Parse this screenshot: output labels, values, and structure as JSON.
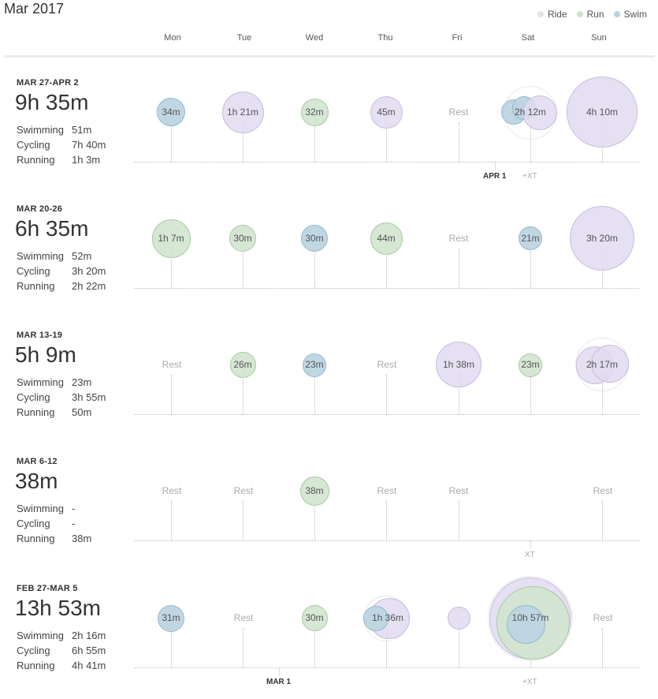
{
  "header": {
    "title": "Mar 2017"
  },
  "legend": {
    "items": [
      {
        "label": "Ride",
        "color": "#e3e3e3"
      },
      {
        "label": "Run",
        "color": "#cfe2cc"
      },
      {
        "label": "Swim",
        "color": "#b9d3e3"
      }
    ]
  },
  "days": [
    "Mon",
    "Tue",
    "Wed",
    "Thu",
    "Fri",
    "Sat",
    "Sun"
  ],
  "weeks": [
    {
      "range": "MAR 27-APR 2",
      "total": "9h 35m",
      "breakdown": {
        "swim_label": "Swimming",
        "swim": "51m",
        "cycle_label": "Cycling",
        "cycle": "7h 40m",
        "run_label": "Running",
        "run": "1h 3m"
      },
      "days": [
        {
          "day": "Mon",
          "label": "34m"
        },
        {
          "day": "Tue",
          "label": "1h 21m"
        },
        {
          "day": "Wed",
          "label": "32m"
        },
        {
          "day": "Thu",
          "label": "45m"
        },
        {
          "day": "Fri",
          "label": "Rest"
        },
        {
          "day": "Sat",
          "label": "2h 12m"
        },
        {
          "day": "Sun",
          "label": "4h 10m"
        }
      ],
      "marker": "APR 1",
      "xt": "+XT"
    },
    {
      "range": "MAR 20-26",
      "total": "6h 35m",
      "breakdown": {
        "swim_label": "Swimming",
        "swim": "52m",
        "cycle_label": "Cycling",
        "cycle": "3h 20m",
        "run_label": "Running",
        "run": "2h 22m"
      },
      "days": [
        {
          "day": "Mon",
          "label": "1h 7m"
        },
        {
          "day": "Tue",
          "label": "30m"
        },
        {
          "day": "Wed",
          "label": "30m"
        },
        {
          "day": "Thu",
          "label": "44m"
        },
        {
          "day": "Fri",
          "label": "Rest"
        },
        {
          "day": "Sat",
          "label": "21m"
        },
        {
          "day": "Sun",
          "label": "3h 20m"
        }
      ]
    },
    {
      "range": "MAR 13-19",
      "total": "5h 9m",
      "breakdown": {
        "swim_label": "Swimming",
        "swim": "23m",
        "cycle_label": "Cycling",
        "cycle": "3h 55m",
        "run_label": "Running",
        "run": "50m"
      },
      "days": [
        {
          "day": "Mon",
          "label": "Rest"
        },
        {
          "day": "Tue",
          "label": "26m"
        },
        {
          "day": "Wed",
          "label": "23m"
        },
        {
          "day": "Thu",
          "label": "Rest"
        },
        {
          "day": "Fri",
          "label": "1h 38m"
        },
        {
          "day": "Sat",
          "label": "23m"
        },
        {
          "day": "Sun",
          "label": "2h 17m"
        }
      ]
    },
    {
      "range": "MAR 6-12",
      "total": "38m",
      "breakdown": {
        "swim_label": "Swimming",
        "swim": "-",
        "cycle_label": "Cycling",
        "cycle": "-",
        "run_label": "Running",
        "run": "38m"
      },
      "days": [
        {
          "day": "Mon",
          "label": "Rest"
        },
        {
          "day": "Tue",
          "label": "Rest"
        },
        {
          "day": "Wed",
          "label": "38m"
        },
        {
          "day": "Thu",
          "label": "Rest"
        },
        {
          "day": "Fri",
          "label": "Rest"
        },
        {
          "day": "Sun",
          "label": "Rest"
        }
      ],
      "xt": "XT"
    },
    {
      "range": "FEB 27-MAR 5",
      "total": "13h 53m",
      "breakdown": {
        "swim_label": "Swimming",
        "swim": "2h 16m",
        "cycle_label": "Cycling",
        "cycle": "6h 55m",
        "run_label": "Running",
        "run": "4h 41m"
      },
      "days": [
        {
          "day": "Mon",
          "label": "31m"
        },
        {
          "day": "Tue",
          "label": "Rest"
        },
        {
          "day": "Wed",
          "label": "30m"
        },
        {
          "day": "Thu",
          "label": "1h 36m"
        },
        {
          "day": "Sat",
          "label": "10h 57m"
        },
        {
          "day": "Sun",
          "label": "Rest"
        }
      ],
      "marker": "MAR 1",
      "xt": "+XT"
    }
  ]
}
